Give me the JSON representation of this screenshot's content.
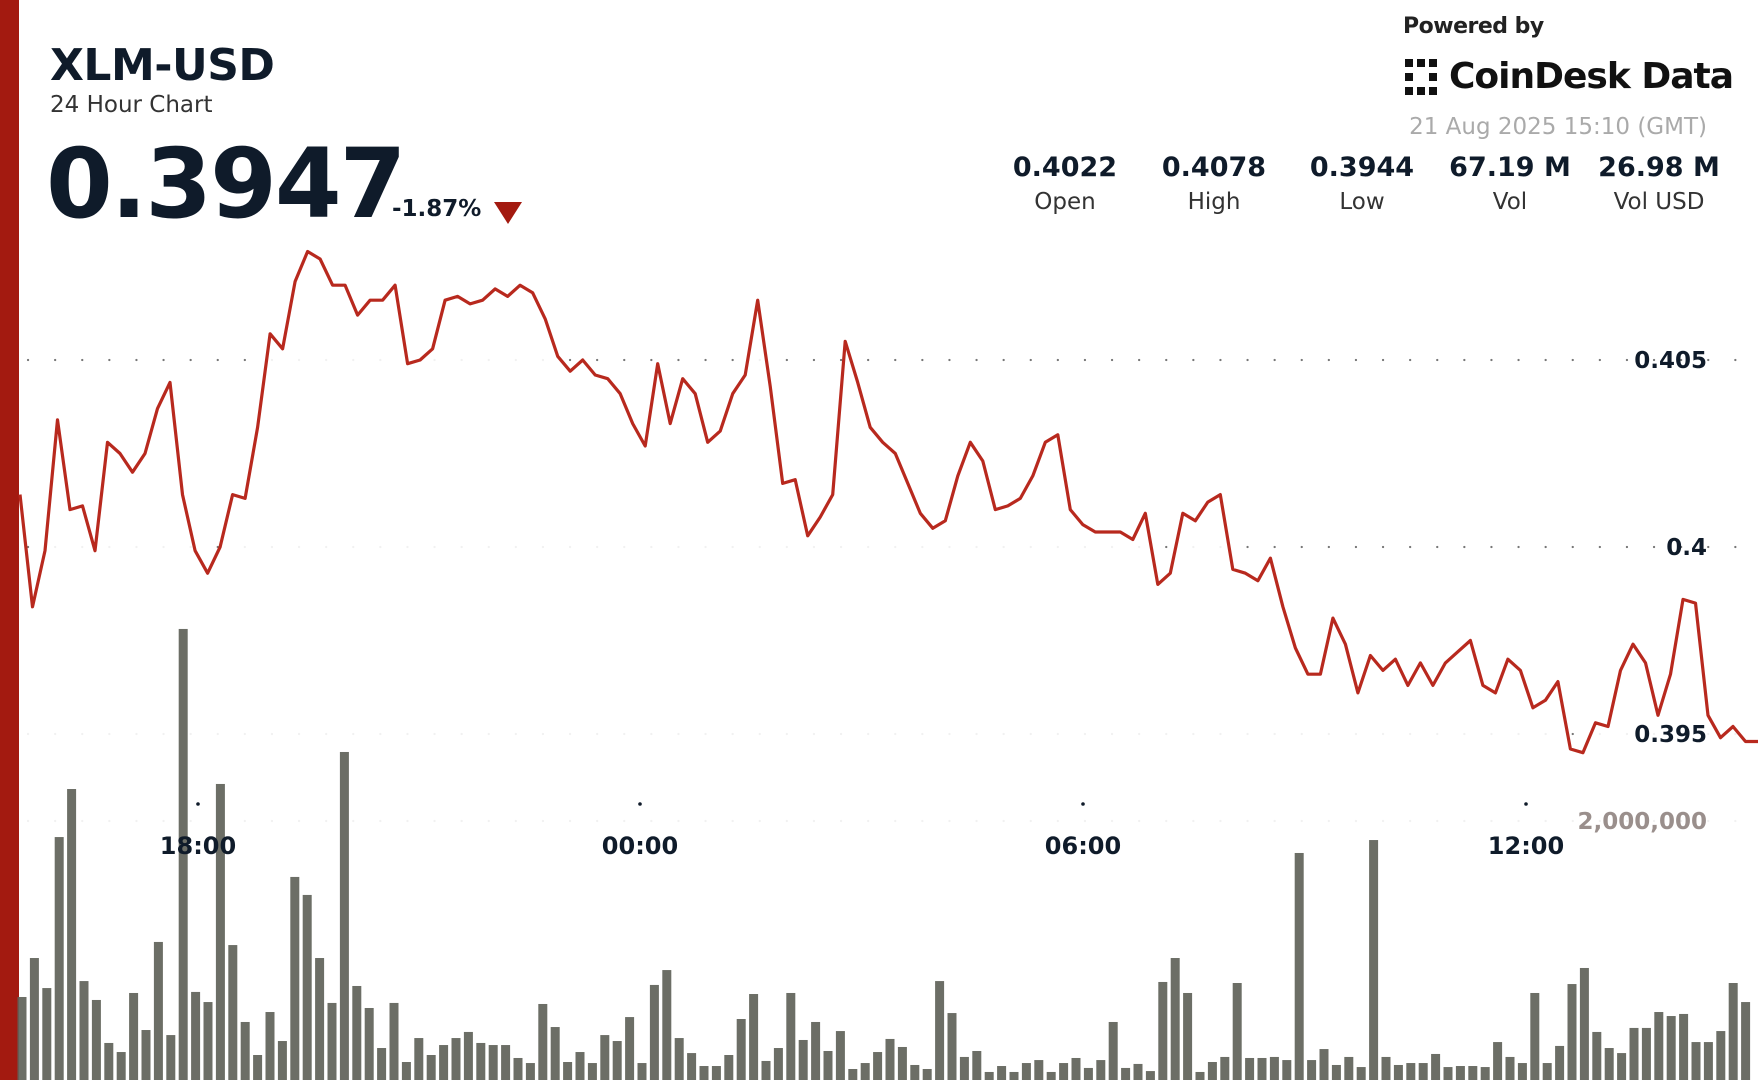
{
  "header": {
    "pair": "XLM-USD",
    "subtitle": "24 Hour Chart",
    "price": "0.3947",
    "change": "-1.87%",
    "change_direction": "down",
    "powered_by": "Powered by",
    "brand": "CoinDesk Data",
    "timestamp": "21 Aug 2025 15:10 (GMT)"
  },
  "stats": [
    {
      "value": "0.4022",
      "label": "Open"
    },
    {
      "value": "0.4078",
      "label": "High"
    },
    {
      "value": "0.3944",
      "label": "Low"
    },
    {
      "value": "67.19 M",
      "label": "Vol"
    },
    {
      "value": "26.98 M",
      "label": "Vol USD"
    }
  ],
  "colors": {
    "accent": "#a31a10",
    "line": "#b8291e",
    "volume_bar": "#5f6259",
    "text": "#0f1b2a"
  },
  "chart_data": [
    {
      "type": "area",
      "series_role": "price",
      "x_ticks": [
        "18:00",
        "00:00",
        "06:00",
        "12:00"
      ],
      "y_ticks": [
        "0.405",
        "0.4",
        "0.395"
      ],
      "y_tick_values": [
        0.405,
        0.4,
        0.395
      ],
      "ylim": [
        0.3901,
        0.4092
      ],
      "grid": "dotted horizontal",
      "values": [
        0.4014,
        0.3984,
        0.3999,
        0.4034,
        0.401,
        0.4011,
        0.3999,
        0.4028,
        0.4025,
        0.402,
        0.4025,
        0.4037,
        0.4044,
        0.4014,
        0.3999,
        0.3993,
        0.4,
        0.4014,
        0.4013,
        0.4032,
        0.4057,
        0.4053,
        0.4071,
        0.4079,
        0.4077,
        0.407,
        0.407,
        0.4062,
        0.4066,
        0.4066,
        0.407,
        0.4049,
        0.405,
        0.4053,
        0.4066,
        0.4067,
        0.4065,
        0.4066,
        0.4069,
        0.4067,
        0.407,
        0.4068,
        0.4061,
        0.4051,
        0.4047,
        0.405,
        0.4046,
        0.4045,
        0.4041,
        0.4033,
        0.4027,
        0.4049,
        0.4033,
        0.4045,
        0.4041,
        0.4028,
        0.4031,
        0.4041,
        0.4046,
        0.4066,
        0.4043,
        0.4017,
        0.4018,
        0.4003,
        0.4008,
        0.4014,
        0.4055,
        0.4044,
        0.4032,
        0.4028,
        0.4025,
        0.4017,
        0.4009,
        0.4005,
        0.4007,
        0.4019,
        0.4028,
        0.4023,
        0.401,
        0.4011,
        0.4013,
        0.4019,
        0.4028,
        0.403,
        0.401,
        0.4006,
        0.4004,
        0.4004,
        0.4004,
        0.4002,
        0.4009,
        0.399,
        0.3993,
        0.4009,
        0.4007,
        0.4012,
        0.4014,
        0.3994,
        0.3993,
        0.3991,
        0.3997,
        0.3984,
        0.3973,
        0.3966,
        0.3966,
        0.3981,
        0.3974,
        0.3961,
        0.3971,
        0.3967,
        0.397,
        0.3963,
        0.3969,
        0.3963,
        0.3969,
        0.3972,
        0.3975,
        0.3963,
        0.3961,
        0.397,
        0.3967,
        0.3957,
        0.3959,
        0.3964,
        0.3946,
        0.3945,
        0.3953,
        0.3952,
        0.3967,
        0.3974,
        0.3969,
        0.3955,
        0.3966,
        0.3986,
        0.3985,
        0.3955,
        0.3949,
        0.3952,
        0.3948,
        0.3948
      ]
    },
    {
      "type": "bar",
      "series_role": "volume",
      "y_ticks": [
        "2,000,000"
      ],
      "y_tick_values": [
        2000000
      ],
      "values": [
        641000,
        942000,
        710000,
        1876000,
        2247000,
        764000,
        618000,
        286000,
        216000,
        672000,
        386000,
        1066000,
        347000,
        3483000,
        680000,
        602000,
        2286000,
        1042000,
        448000,
        193000,
        525000,
        301000,
        1568000,
        1429000,
        942000,
        595000,
        2533000,
        726000,
        556000,
        247000,
        595000,
        139000,
        324000,
        193000,
        270000,
        324000,
        371000,
        286000,
        270000,
        270000,
        170000,
        131000,
        587000,
        409000,
        139000,
        216000,
        131000,
        347000,
        301000,
        486000,
        131000,
        734000,
        849000,
        324000,
        208000,
        108000,
        108000,
        193000,
        471000,
        664000,
        147000,
        247000,
        672000,
        309000,
        448000,
        224000,
        378000,
        85000,
        131000,
        216000,
        317000,
        255000,
        116000,
        85000,
        764000,
        517000,
        178000,
        224000,
        62000,
        108000,
        62000,
        131000,
        154000,
        62000,
        131000,
        170000,
        93000,
        154000,
        448000,
        93000,
        124000,
        69000,
        757000,
        942000,
        672000,
        62000,
        139000,
        178000,
        749000,
        170000,
        170000,
        178000,
        154000,
        1753000,
        154000,
        239000,
        116000,
        178000,
        100000,
        1853000,
        178000,
        116000,
        131000,
        131000,
        201000,
        100000,
        108000,
        108000,
        100000,
        293000,
        178000,
        131000,
        672000,
        131000,
        263000,
        741000,
        865000,
        371000,
        247000,
        208000,
        402000,
        402000,
        525000,
        494000,
        510000,
        293000,
        293000,
        378000,
        749000,
        602000
      ]
    }
  ]
}
